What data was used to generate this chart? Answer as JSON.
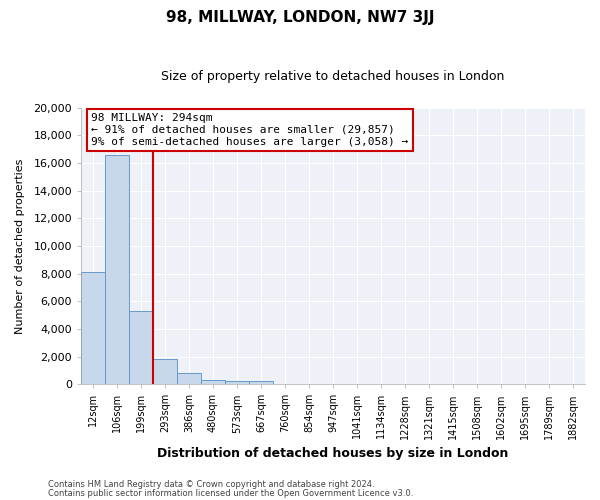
{
  "title": "98, MILLWAY, LONDON, NW7 3JJ",
  "subtitle": "Size of property relative to detached houses in London",
  "xlabel": "Distribution of detached houses by size in London",
  "ylabel": "Number of detached properties",
  "bin_labels": [
    "12sqm",
    "106sqm",
    "199sqm",
    "293sqm",
    "386sqm",
    "480sqm",
    "573sqm",
    "667sqm",
    "760sqm",
    "854sqm",
    "947sqm",
    "1041sqm",
    "1134sqm",
    "1228sqm",
    "1321sqm",
    "1415sqm",
    "1508sqm",
    "1602sqm",
    "1695sqm",
    "1789sqm",
    "1882sqm"
  ],
  "bar_values": [
    8100,
    16600,
    5300,
    1800,
    800,
    300,
    200,
    200,
    0,
    0,
    0,
    0,
    0,
    0,
    0,
    0,
    0,
    0,
    0,
    0,
    0
  ],
  "bar_color": "#c8d8eb",
  "bar_edge_color": "#6699cc",
  "vline_x": 3,
  "vline_color": "#cc0000",
  "annotation_title": "98 MILLWAY: 294sqm",
  "annotation_line1": "← 91% of detached houses are smaller (29,857)",
  "annotation_line2": "9% of semi-detached houses are larger (3,058) →",
  "annotation_box_color": "#ffffff",
  "annotation_box_edge": "#cc0000",
  "ylim": [
    0,
    20000
  ],
  "yticks": [
    0,
    2000,
    4000,
    6000,
    8000,
    10000,
    12000,
    14000,
    16000,
    18000,
    20000
  ],
  "footnote1": "Contains HM Land Registry data © Crown copyright and database right 2024.",
  "footnote2": "Contains public sector information licensed under the Open Government Licence v3.0.",
  "bg_color": "#ffffff",
  "plot_bg_color": "#eef2f8",
  "grid_color": "#ffffff",
  "title_fontsize": 11,
  "subtitle_fontsize": 9
}
